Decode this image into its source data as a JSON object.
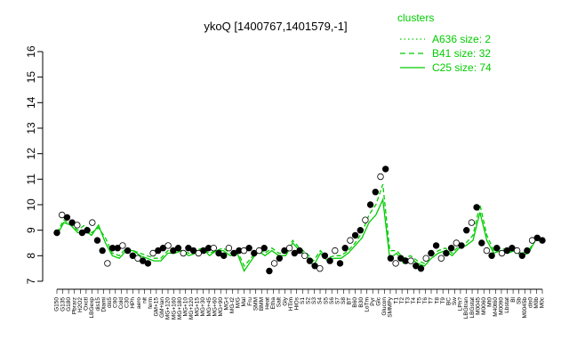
{
  "chart_data": {
    "type": "line",
    "title": "ykoQ [1400767,1401579,-1]",
    "ylim": [
      7,
      16
    ],
    "yticks": [
      7,
      8,
      9,
      10,
      11,
      12,
      13,
      14,
      15,
      16
    ],
    "legend": {
      "title": "clusters",
      "placement": "top-right",
      "entries": [
        {
          "label": "A636 size: 2",
          "style": "dotted"
        },
        {
          "label": "B41 size: 32",
          "style": "dashed"
        },
        {
          "label": "C25 size: 74",
          "style": "solid"
        }
      ]
    },
    "colors": {
      "series": "#00cc00",
      "points": "#000000"
    },
    "x_labels": [
      "G150",
      "G135",
      "G180",
      "Pbrarz",
      "H2O2",
      "Oxctl",
      "LBGexp",
      "dis15",
      "Diami",
      "dis5",
      "C90",
      "Cold",
      "C30",
      "HPh",
      "aero",
      "nit",
      "ferm",
      "GM+15",
      "GM+lan",
      "MG+120",
      "MG+160",
      "MG+180",
      "MG+10",
      "MG+120",
      "MG+15",
      "MG+30",
      "MG+45",
      "MG+60",
      "MG+90",
      "MG-t",
      "MG-t2",
      "M/G",
      "Mal",
      "Fru",
      "SMM",
      "BMM",
      "Heat",
      "Etha",
      "Salt",
      "Gly",
      "HTim",
      "HiOs",
      "S1",
      "S2",
      "S3",
      "S4",
      "S5",
      "S6",
      "S7",
      "S8",
      "BT",
      "B60",
      "B30",
      "LoTm",
      "Pyr",
      "Glc",
      "Glucon",
      "SMMPy",
      "T1",
      "T2",
      "T3",
      "T4",
      "T5",
      "T6",
      "T7",
      "T8",
      "T9",
      "BC",
      "Sw",
      "LPh?",
      "LBGtran",
      "LBGstat",
      "M0045",
      "M0060",
      "Mt0",
      "M40t60",
      "M0090",
      "Lbstat",
      "Bl",
      "Sb",
      "M0045b",
      "dis0",
      "M0b",
      "M0c"
    ],
    "visible_x_labels": [
      "G150",
      "G135",
      "G180",
      "Pbrarz",
      "H2O2",
      "Oxctl",
      "LBGexp",
      "dis15",
      "Diami",
      "dis5",
      "C90",
      "Cold",
      "C30",
      "HPh",
      "aero",
      "nit",
      "ferm",
      "GM+15",
      "GM+lan",
      "MG+120",
      "M/G",
      "Mal",
      "Fru",
      "SMM",
      "BMM",
      "Heat",
      "Etha",
      "Salt",
      "Gly",
      "HTim",
      "HiOs",
      "S1",
      "S2",
      "S3",
      "S4",
      "S5",
      "S6",
      "S7",
      "S8",
      "BT",
      "B60",
      "B30",
      "LoTm",
      "Pyr",
      "Glc",
      "Glucon",
      "SMMPy",
      "BC",
      "Sw",
      "LPh?",
      "LBGtran",
      "M0045",
      "M0060",
      "Mt0",
      "M0090",
      "Lbstat",
      "Bl",
      "Sb",
      "M0045b",
      "dis0",
      "M0b",
      "M0c"
    ],
    "series": [
      {
        "kind": "points",
        "values": [
          8.9,
          9.6,
          9.5,
          9.3,
          9.2,
          8.9,
          9.0,
          9.3,
          8.6,
          8.2,
          7.7,
          8.3,
          8.3,
          8.4,
          8.2,
          8.0,
          7.9,
          7.8,
          7.7,
          8.1,
          8.2,
          8.3,
          8.4,
          8.2,
          8.3,
          8.1,
          8.3,
          8.2,
          8.1,
          8.2,
          8.3,
          8.3,
          8.1,
          8.0,
          8.3,
          8.1,
          8.2,
          8.2,
          8.3,
          8.1,
          8.2,
          8.3,
          7.4,
          7.7,
          7.9,
          8.2,
          8.3,
          8.1,
          8.2,
          8.0,
          7.8,
          7.6,
          7.5,
          8.0,
          7.8,
          8.2,
          7.7,
          8.3,
          8.6,
          8.8,
          9.0,
          9.4,
          10.0,
          10.5,
          11.1,
          11.4,
          7.9,
          7.7,
          7.9,
          7.8,
          7.8,
          7.6,
          7.5,
          7.9,
          8.1,
          8.4,
          7.9,
          8.1,
          8.3,
          8.5,
          8.4,
          9.0,
          9.3,
          9.9,
          8.5,
          8.2,
          8.0,
          8.3,
          8.1,
          8.2,
          8.3,
          8.2,
          8.0,
          8.2,
          8.6,
          8.7,
          8.6
        ]
      },
      {
        "kind": "line",
        "name": "C25",
        "values": [
          8.8,
          9.3,
          9.2,
          8.9,
          9.0,
          8.8,
          9.2,
          8.5,
          8.0,
          7.9,
          8.2,
          8.2,
          8.0,
          7.9,
          7.8,
          7.8,
          8.1,
          8.1,
          8.2,
          8.0,
          8.1,
          8.3,
          8.0,
          8.2,
          8.2,
          8.0,
          8.1,
          7.4,
          7.8,
          8.2,
          8.0,
          8.2,
          8.0,
          8.0,
          8.5,
          8.2,
          8.0,
          7.6,
          8.1,
          7.8,
          7.9,
          7.9,
          8.1,
          8.4,
          8.7,
          9.3,
          9.6,
          10.2,
          7.9,
          8.1,
          7.7,
          7.9,
          7.7,
          7.6,
          7.9,
          8.1,
          8.2,
          8.0,
          8.3,
          8.4,
          8.6,
          9.7,
          8.6,
          8.1,
          8.2,
          8.1,
          8.2,
          8.0,
          8.1,
          8.6,
          8.6
        ]
      },
      {
        "kind": "line",
        "name": "B41",
        "values": [
          8.9,
          9.4,
          9.2,
          9.0,
          9.2,
          8.9,
          9.1,
          8.7,
          8.1,
          8.0,
          8.3,
          8.2,
          8.1,
          8.0,
          7.9,
          7.9,
          8.2,
          8.2,
          8.2,
          8.1,
          8.2,
          8.3,
          8.1,
          8.2,
          8.3,
          8.1,
          8.2,
          7.6,
          7.9,
          8.3,
          8.1,
          8.3,
          8.1,
          8.1,
          8.6,
          8.3,
          8.1,
          7.8,
          8.2,
          7.9,
          8.0,
          8.0,
          8.2,
          8.5,
          8.9,
          9.6,
          10.0,
          10.8,
          8.2,
          8.2,
          7.9,
          8.0,
          7.8,
          7.7,
          8.0,
          8.2,
          8.3,
          8.1,
          8.4,
          8.5,
          8.8,
          10.0,
          8.8,
          8.2,
          8.3,
          8.2,
          8.2,
          8.1,
          8.2,
          8.6,
          8.7
        ]
      }
    ]
  }
}
